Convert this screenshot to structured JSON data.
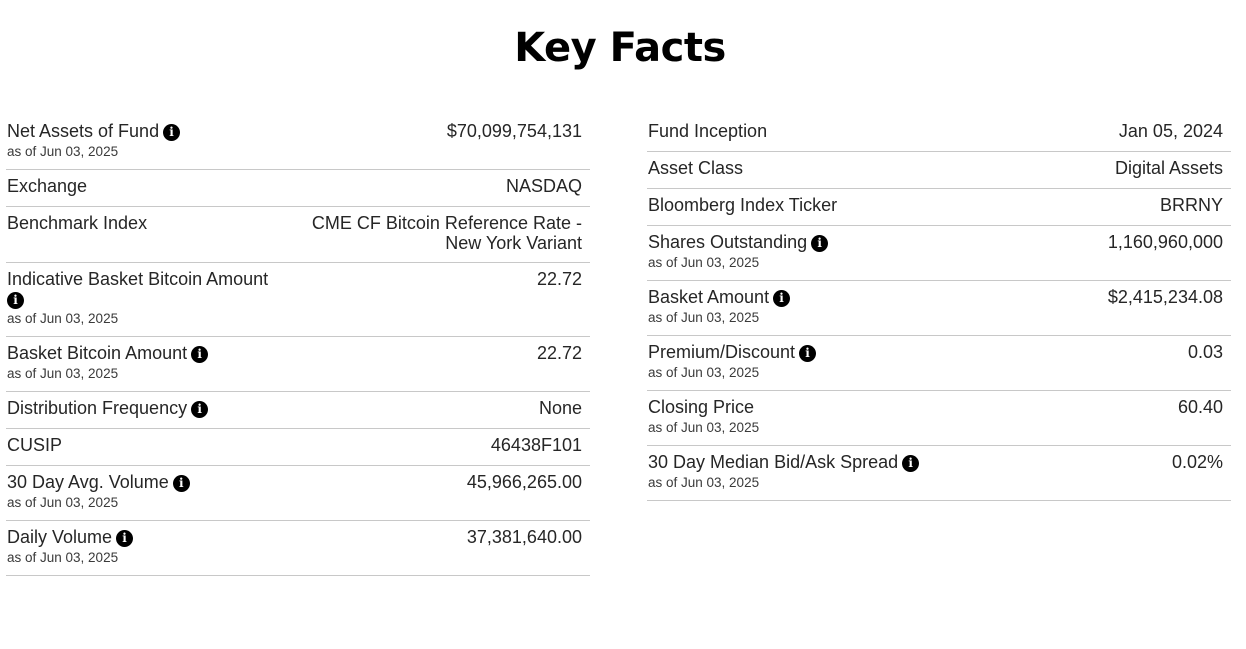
{
  "page": {
    "title": "Key Facts"
  },
  "left": [
    {
      "label": "Net Assets of Fund",
      "info": true,
      "asof": "as of Jun 03, 2025",
      "value": "$70,099,754,131"
    },
    {
      "label": "Exchange",
      "info": false,
      "asof": "",
      "value": "NASDAQ"
    },
    {
      "label": "Benchmark Index",
      "info": false,
      "asof": "",
      "value": "CME CF Bitcoin Reference Rate - New York Variant"
    },
    {
      "label": "Indicative Basket Bitcoin Amount",
      "info": true,
      "asof": "as of Jun 03, 2025",
      "value": "22.72"
    },
    {
      "label": "Basket Bitcoin Amount",
      "info": true,
      "asof": "as of Jun 03, 2025",
      "value": "22.72"
    },
    {
      "label": "Distribution Frequency",
      "info": true,
      "asof": "",
      "value": "None"
    },
    {
      "label": "CUSIP",
      "info": false,
      "asof": "",
      "value": "46438F101"
    },
    {
      "label": "30 Day Avg. Volume",
      "info": true,
      "asof": "as of Jun 03, 2025",
      "value": "45,966,265.00"
    },
    {
      "label": "Daily Volume",
      "info": true,
      "asof": "as of Jun 03, 2025",
      "value": "37,381,640.00"
    }
  ],
  "right": [
    {
      "label": "Fund Inception",
      "info": false,
      "asof": "",
      "value": "Jan 05, 2024"
    },
    {
      "label": "Asset Class",
      "info": false,
      "asof": "",
      "value": "Digital Assets"
    },
    {
      "label": "Bloomberg Index Ticker",
      "info": false,
      "asof": "",
      "value": "BRRNY"
    },
    {
      "label": "Shares Outstanding",
      "info": true,
      "asof": "as of Jun 03, 2025",
      "value": "1,160,960,000"
    },
    {
      "label": "Basket Amount",
      "info": true,
      "asof": "as of Jun 03, 2025",
      "value": "$2,415,234.08"
    },
    {
      "label": "Premium/Discount",
      "info": true,
      "asof": "as of Jun 03, 2025",
      "value": "0.03"
    },
    {
      "label": "Closing Price",
      "info": false,
      "asof": "as of Jun 03, 2025",
      "value": "60.40"
    },
    {
      "label": "30 Day Median Bid/Ask Spread",
      "info": true,
      "asof": "as of Jun 03, 2025",
      "value": "0.02%"
    }
  ],
  "icons": {
    "info": "info-icon"
  },
  "colors": {
    "text": "#262626",
    "divider": "#c8c8c8",
    "icon": "#000000"
  }
}
